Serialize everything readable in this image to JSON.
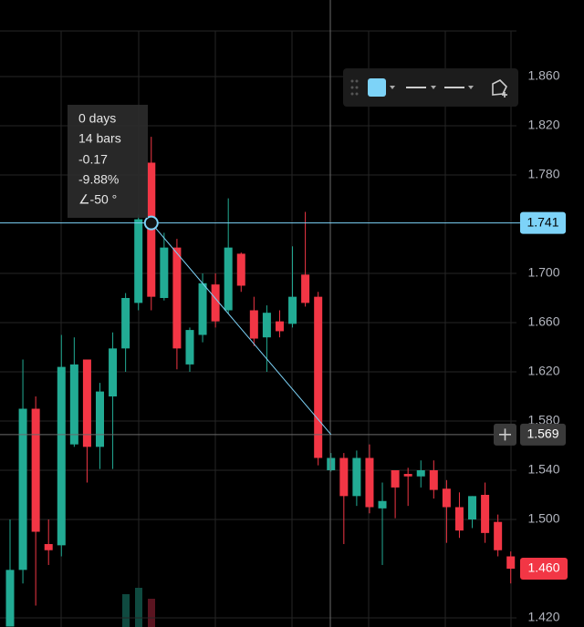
{
  "chart_data": {
    "type": "candlestick",
    "up_color": "#22ab94",
    "down_color": "#f23645",
    "open": [
      1.413,
      1.459,
      1.59,
      1.48,
      1.479,
      1.561,
      1.63,
      1.559,
      1.6,
      1.639,
      1.676,
      1.79,
      1.68,
      1.721,
      1.626,
      1.65,
      1.691,
      1.67,
      1.716,
      1.67,
      1.648,
      1.661,
      1.659,
      1.699,
      1.681,
      1.54,
      1.55,
      1.519,
      1.55,
      1.509,
      1.54,
      1.537,
      1.535,
      1.54,
      1.525,
      1.51,
      1.5,
      1.52,
      1.498,
      1.47
    ],
    "high": [
      1.5,
      1.63,
      1.6,
      1.5,
      1.65,
      1.648,
      1.63,
      1.611,
      1.652,
      1.684,
      1.748,
      1.811,
      1.733,
      1.728,
      1.656,
      1.7,
      1.7,
      1.761,
      1.717,
      1.681,
      1.674,
      1.67,
      1.722,
      1.75,
      1.685,
      1.554,
      1.554,
      1.556,
      1.561,
      1.53,
      1.54,
      1.542,
      1.548,
      1.548,
      1.532,
      1.522,
      1.519,
      1.53,
      1.504,
      1.474
    ],
    "low": [
      1.413,
      1.448,
      1.43,
      1.463,
      1.47,
      1.559,
      1.53,
      1.541,
      1.541,
      1.62,
      1.67,
      1.67,
      1.678,
      1.622,
      1.62,
      1.644,
      1.656,
      1.667,
      1.685,
      1.641,
      1.62,
      1.648,
      1.656,
      1.673,
      1.544,
      1.539,
      1.48,
      1.511,
      1.505,
      1.463,
      1.501,
      1.511,
      1.526,
      1.517,
      1.481,
      1.485,
      1.493,
      1.481,
      1.47,
      1.448
    ],
    "close": [
      1.459,
      1.59,
      1.49,
      1.475,
      1.624,
      1.626,
      1.559,
      1.604,
      1.639,
      1.68,
      1.744,
      1.681,
      1.721,
      1.639,
      1.654,
      1.692,
      1.661,
      1.721,
      1.69,
      1.647,
      1.668,
      1.653,
      1.681,
      1.676,
      1.55,
      1.55,
      1.519,
      1.55,
      1.51,
      1.515,
      1.526,
      1.535,
      1.54,
      1.524,
      1.51,
      1.491,
      1.519,
      1.489,
      1.475,
      1.46
    ],
    "ylim": [
      1.4126,
      1.9222
    ],
    "yticks": [
      {
        "value": 1.86,
        "label": "1.860"
      },
      {
        "value": 1.82,
        "label": "1.820"
      },
      {
        "value": 1.78,
        "label": "1.780"
      },
      {
        "value": 1.7,
        "label": "1.700"
      },
      {
        "value": 1.66,
        "label": "1.660"
      },
      {
        "value": 1.62,
        "label": "1.620"
      },
      {
        "value": 1.58,
        "label": "1.580"
      },
      {
        "value": 1.54,
        "label": "1.540"
      },
      {
        "value": 1.5,
        "label": "1.500"
      },
      {
        "value": 1.42,
        "label": "1.420"
      }
    ],
    "grid": true,
    "horizontal_line": {
      "value": 1.741,
      "label": "1.741",
      "color": "#7dd3f8"
    },
    "crosshair": {
      "value": 1.569,
      "label": "1.569"
    },
    "last_price": {
      "value": 1.46,
      "label": "1.460"
    },
    "trend_line": {
      "from": {
        "x": 11,
        "y": 1.741
      },
      "to": {
        "x": 25,
        "y": 1.569
      },
      "color": "#7dd3f8"
    },
    "measure": [
      "0 days",
      "14 bars",
      "-0.17",
      "-9.88%",
      "∠-50 °"
    ]
  }
}
